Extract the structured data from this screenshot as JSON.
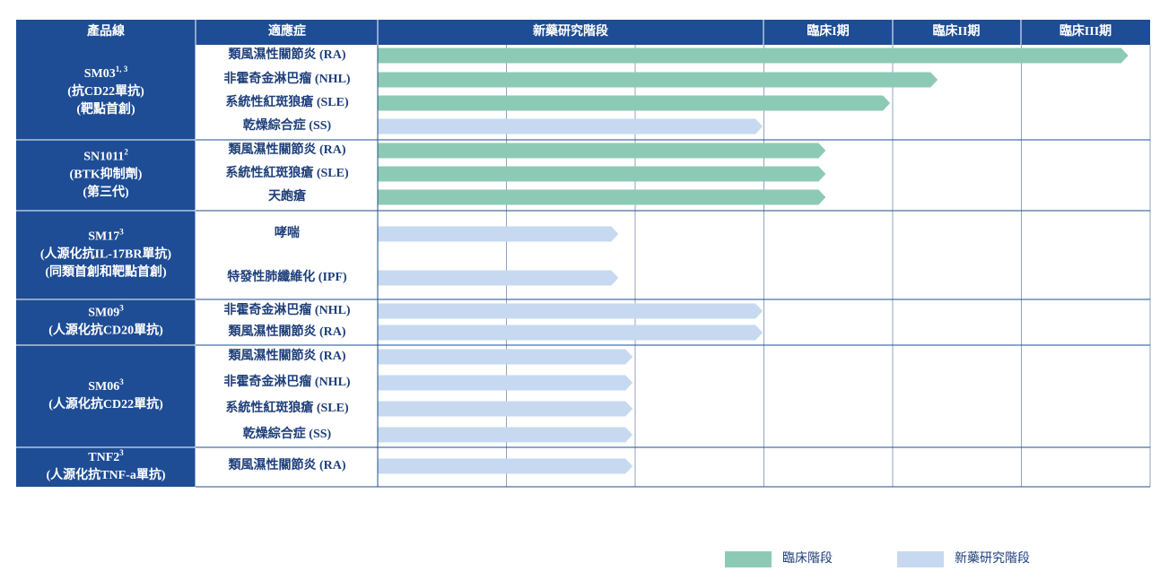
{
  "header": {
    "product": "產品線",
    "indication": "適應症",
    "stages": [
      "新藥研究階段",
      "臨床I期",
      "臨床II期",
      "臨床III期"
    ]
  },
  "chart_data": {
    "type": "pipeline",
    "xlim": [
      0,
      6
    ],
    "xticks": [
      0,
      1,
      2,
      3,
      4,
      5,
      6
    ],
    "legend": [
      {
        "name": "臨床階段",
        "color": "#8dcab5"
      },
      {
        "name": "新藥研究階段",
        "color": "#c6d9f0"
      }
    ],
    "groups": [
      {
        "name": "SM03",
        "note": "1, 3",
        "lines": [
          "(抗CD22單抗)",
          "(靶點首創)"
        ],
        "rows": [
          {
            "indication": "類風濕性關節炎 (RA)",
            "value": 5.83,
            "color": "#8dcab5"
          },
          {
            "indication": "非霍奇金淋巴瘤 (NHL)",
            "value": 4.35,
            "color": "#8dcab5"
          },
          {
            "indication": "系統性紅斑狼瘡 (SLE)",
            "value": 3.98,
            "color": "#8dcab5"
          },
          {
            "indication": "乾燥綜合症 (SS)",
            "value": 2.99,
            "color": "#c6d9f0"
          }
        ]
      },
      {
        "name": "SN1011",
        "note": "2",
        "lines": [
          "(BTK抑制劑)",
          "(第三代)"
        ],
        "rows": [
          {
            "indication": "類風濕性關節炎 (RA)",
            "value": 3.48,
            "color": "#8dcab5"
          },
          {
            "indication": "系統性紅斑狼瘡 (SLE)",
            "value": 3.48,
            "color": "#8dcab5"
          },
          {
            "indication": "天皰瘡",
            "value": 3.48,
            "color": "#8dcab5"
          }
        ]
      },
      {
        "name": "SM17",
        "note": "3",
        "lines": [
          "(人源化抗IL-17BR單抗)",
          "(同類首創和靶點首創)"
        ],
        "rows": [
          {
            "indication": "哮喘",
            "value": 1.87,
            "color": "#c6d9f0"
          },
          {
            "indication": "特發性肺纖維化 (IPF)",
            "value": 1.87,
            "color": "#c6d9f0"
          }
        ]
      },
      {
        "name": "SM09",
        "note": "3",
        "lines": [
          "(人源化抗CD20單抗)"
        ],
        "rows": [
          {
            "indication": "非霍奇金淋巴瘤 (NHL)",
            "value": 2.99,
            "color": "#c6d9f0"
          },
          {
            "indication": "類風濕性關節炎 (RA)",
            "value": 2.99,
            "color": "#c6d9f0"
          }
        ]
      },
      {
        "name": "SM06",
        "note": "3",
        "lines": [
          "(人源化抗CD22單抗)"
        ],
        "rows": [
          {
            "indication": "類風濕性關節炎 (RA)",
            "value": 1.98,
            "color": "#c6d9f0"
          },
          {
            "indication": "非霍奇金淋巴瘤 (NHL)",
            "value": 1.98,
            "color": "#c6d9f0"
          },
          {
            "indication": "系統性紅斑狼瘡 (SLE)",
            "value": 1.98,
            "color": "#c6d9f0"
          },
          {
            "indication": "乾燥綜合症 (SS)",
            "value": 1.98,
            "color": "#c6d9f0"
          }
        ]
      },
      {
        "name": "TNF2",
        "note": "3",
        "lines": [
          "(人源化抗TNF-a單抗)"
        ],
        "rows": [
          {
            "indication": "類風濕性關節炎 (RA)",
            "value": 1.98,
            "color": "#c6d9f0"
          }
        ]
      }
    ]
  }
}
